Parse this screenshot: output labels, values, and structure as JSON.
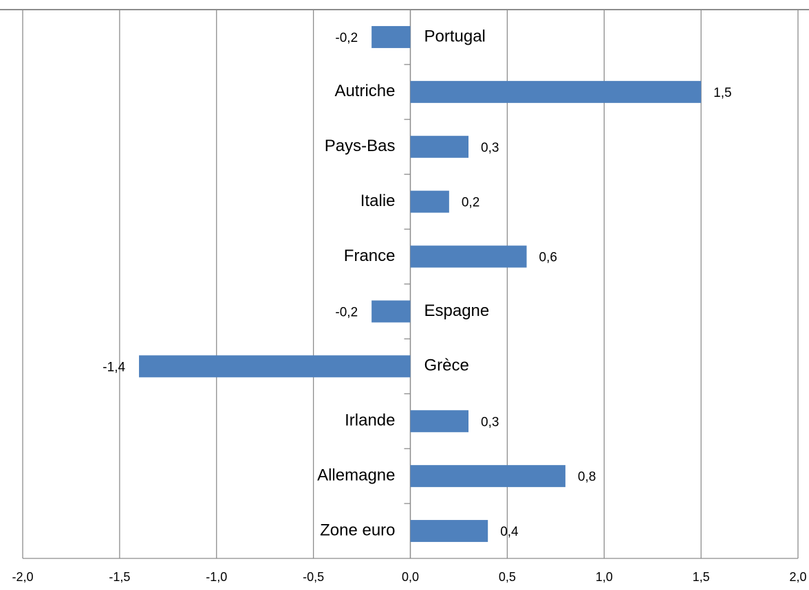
{
  "chart_data": {
    "type": "barh",
    "categories": [
      "Portugal",
      "Autriche",
      "Pays-Bas",
      "Italie",
      "France",
      "Espagne",
      "Grèce",
      "Irlande",
      "Allemagne",
      "Zone euro"
    ],
    "values": [
      -0.2,
      1.5,
      0.3,
      0.2,
      0.6,
      -0.2,
      -1.4,
      0.3,
      0.8,
      0.4
    ],
    "value_labels": [
      "-0,2",
      "1,5",
      "0,3",
      "0,2",
      "0,6",
      "-0,2",
      "-1,4",
      "0,3",
      "0,8",
      "0,4"
    ],
    "color": "#4f81bd",
    "xlim": [
      -2.0,
      2.0
    ],
    "xticks": [
      {
        "value": -2.0,
        "label": "-2,0"
      },
      {
        "value": -1.5,
        "label": "-1,5"
      },
      {
        "value": -1.0,
        "label": "-1,0"
      },
      {
        "value": -0.5,
        "label": "-0,5"
      },
      {
        "value": 0.0,
        "label": "0,0"
      },
      {
        "value": 0.5,
        "label": "0,5"
      },
      {
        "value": 1.0,
        "label": "1,0"
      },
      {
        "value": 1.5,
        "label": "1,5"
      },
      {
        "value": 2.0,
        "label": "2,0"
      }
    ],
    "grid": true
  }
}
